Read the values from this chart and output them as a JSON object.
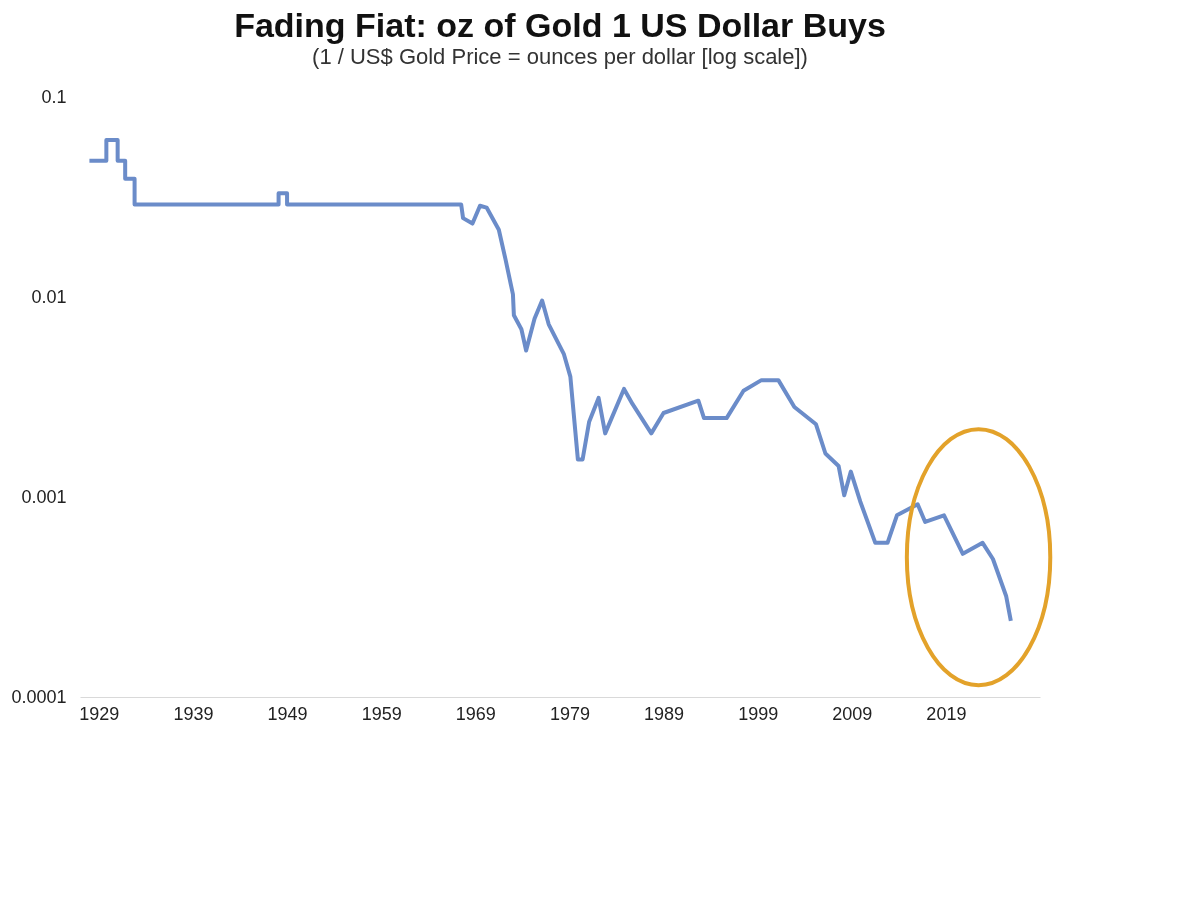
{
  "chart_data": {
    "type": "line",
    "title": "Fading Fiat: oz of Gold 1 US Dollar Buys",
    "subtitle": "(1 / US$ Gold Price = ounces per dollar [log scale])",
    "x": [
      1928,
      1929.8,
      1929.8,
      1931,
      1931,
      1931.8,
      1931.8,
      1932.8,
      1932.8,
      1948.1,
      1948.1,
      1949,
      1949,
      1967.5,
      1967.7,
      1968.7,
      1969.5,
      1970.2,
      1971.5,
      1972.2,
      1973.0,
      1973.1,
      1973.9,
      1974.4,
      1975.3,
      1976.1,
      1976.8,
      1978.4,
      1979.1,
      1979.6,
      1979.9,
      1980.4,
      1981.1,
      1982.1,
      1982.8,
      1984.8,
      1985.7,
      1987.7,
      1989.0,
      1992.7,
      1993.3,
      1995.7,
      1997.5,
      1999.4,
      2001.2,
      2002.9,
      2005.2,
      2006.2,
      2007.6,
      2008.2,
      2008.9,
      2009.9,
      2011.5,
      2012.8,
      2013.8,
      2016.0,
      2016.8,
      2018.8,
      2020.8,
      2022.9,
      2024.0,
      2025.4,
      2025.9
    ],
    "values": [
      0.048,
      0.048,
      0.061,
      0.061,
      0.048,
      0.048,
      0.039,
      0.039,
      0.029,
      0.029,
      0.033,
      0.033,
      0.029,
      0.029,
      0.0248,
      0.0233,
      0.0286,
      0.028,
      0.0217,
      0.0155,
      0.0103,
      0.0081,
      0.0069,
      0.0054,
      0.0078,
      0.0096,
      0.0073,
      0.0052,
      0.004,
      0.0022,
      0.00154,
      0.00154,
      0.00238,
      0.00313,
      0.00208,
      0.00347,
      0.00292,
      0.00208,
      0.00263,
      0.00303,
      0.00248,
      0.00248,
      0.0034,
      0.00384,
      0.00384,
      0.00282,
      0.00231,
      0.00165,
      0.00143,
      0.00102,
      0.00134,
      0.00095,
      0.00059,
      0.00059,
      0.00081,
      0.00092,
      0.00075,
      0.00081,
      0.00052,
      0.00059,
      0.00049,
      0.00032,
      0.00024
    ],
    "color": "#6b8cc9",
    "line_style": "solid",
    "marker": "none",
    "xlim": [
      1927,
      2029
    ],
    "xticks": [
      1929,
      1939,
      1949,
      1959,
      1969,
      1979,
      1989,
      1999,
      2009,
      2019
    ],
    "ylim": [
      0.0001,
      0.1
    ],
    "yticks": [
      0.0001,
      0.001,
      0.01,
      0.1
    ],
    "log": true,
    "grid": false
  }
}
